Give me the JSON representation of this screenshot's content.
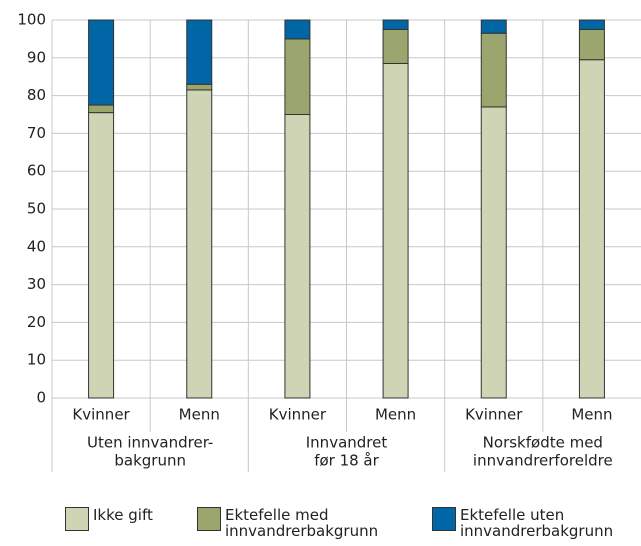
{
  "chart_data": {
    "type": "stacked_bar",
    "categories": [
      "Kvinner",
      "Menn",
      "Kvinner",
      "Menn",
      "Kvinner",
      "Menn"
    ],
    "groups": [
      [
        "Uten innvandrer-",
        "bakgrunn"
      ],
      [
        "Innvandret",
        "før 18 år"
      ],
      [
        "Norskfødte med",
        "innvandrerforeldre"
      ]
    ],
    "series": [
      {
        "name": "Ikke gift",
        "color": "#cfd5b4",
        "values": [
          75.5,
          81.5,
          75,
          88.5,
          77,
          89.5
        ]
      },
      {
        "name": "Ektefelle med innvandrerbakgrunn",
        "color": "#9aa66e",
        "values": [
          2,
          1.5,
          20,
          9,
          19.5,
          8
        ]
      },
      {
        "name": "Ektefelle uten innvandrerbakgrunn",
        "color": "#0066a6",
        "values": [
          22.5,
          17,
          5,
          2.5,
          3.5,
          2.5
        ]
      }
    ],
    "ylim": [
      0,
      100
    ],
    "yticks": [
      0,
      10,
      20,
      30,
      40,
      50,
      60,
      70,
      80,
      90,
      100
    ],
    "grid": true
  }
}
